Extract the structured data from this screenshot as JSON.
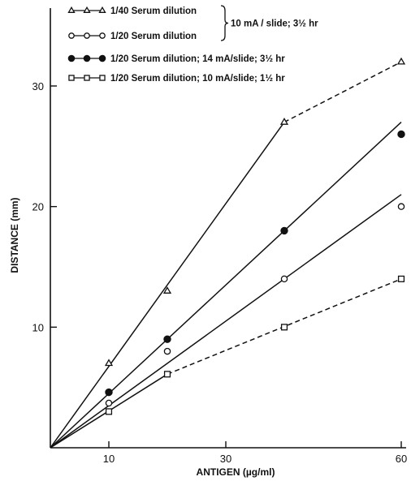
{
  "chart_data": {
    "type": "line",
    "xlabel": "ANTIGEN (µg/ml)",
    "ylabel": "DISTANCE (mm)",
    "xlim": [
      0,
      60
    ],
    "ylim": [
      0,
      36
    ],
    "xticks": [
      {
        "value": 10,
        "label": "10"
      },
      {
        "value": 30,
        "label": "30"
      },
      {
        "value": 60,
        "label": "60"
      }
    ],
    "yticks": [
      {
        "value": 10,
        "label": "10"
      },
      {
        "value": 20,
        "label": "20"
      },
      {
        "value": 30,
        "label": "30"
      }
    ],
    "grid": false,
    "legend_position": "top-left",
    "legend_brace_text": "10 mA / slide; 3½ hr",
    "series": [
      {
        "name": "1/40 Serum dilution",
        "marker": "open-triangle",
        "points": [
          [
            10,
            7
          ],
          [
            20,
            13
          ],
          [
            40,
            27
          ],
          [
            60,
            32
          ]
        ],
        "fit": [
          {
            "from": [
              0,
              0
            ],
            "to": [
              40,
              27
            ],
            "style": "solid"
          },
          {
            "from": [
              40,
              27
            ],
            "to": [
              60,
              32
            ],
            "style": "dashed"
          }
        ]
      },
      {
        "name": "1/20 Serum dilution",
        "marker": "open-circle",
        "points": [
          [
            10,
            3.7
          ],
          [
            20,
            8
          ],
          [
            40,
            14
          ],
          [
            60,
            20
          ]
        ],
        "fit": [
          {
            "from": [
              0,
              0
            ],
            "to": [
              60,
              21
            ],
            "style": "solid"
          }
        ]
      },
      {
        "name": "1/20 Serum dilution; 14 mA/slide; 3½ hr",
        "marker": "filled-circle",
        "points": [
          [
            10,
            4.6
          ],
          [
            20,
            9
          ],
          [
            40,
            18
          ],
          [
            60,
            26
          ]
        ],
        "fit": [
          {
            "from": [
              0,
              0
            ],
            "to": [
              60,
              27
            ],
            "style": "solid"
          }
        ]
      },
      {
        "name": "1/20 Serum dilution; 10 mA/slide; 1½ hr",
        "marker": "open-square",
        "points": [
          [
            10,
            3
          ],
          [
            20,
            6.1
          ],
          [
            40,
            10
          ],
          [
            60,
            14
          ]
        ],
        "fit": [
          {
            "from": [
              0,
              0
            ],
            "to": [
              20,
              6.1
            ],
            "style": "solid"
          },
          {
            "from": [
              20,
              6.1
            ],
            "to": [
              60,
              14
            ],
            "style": "dashed"
          }
        ]
      }
    ]
  }
}
